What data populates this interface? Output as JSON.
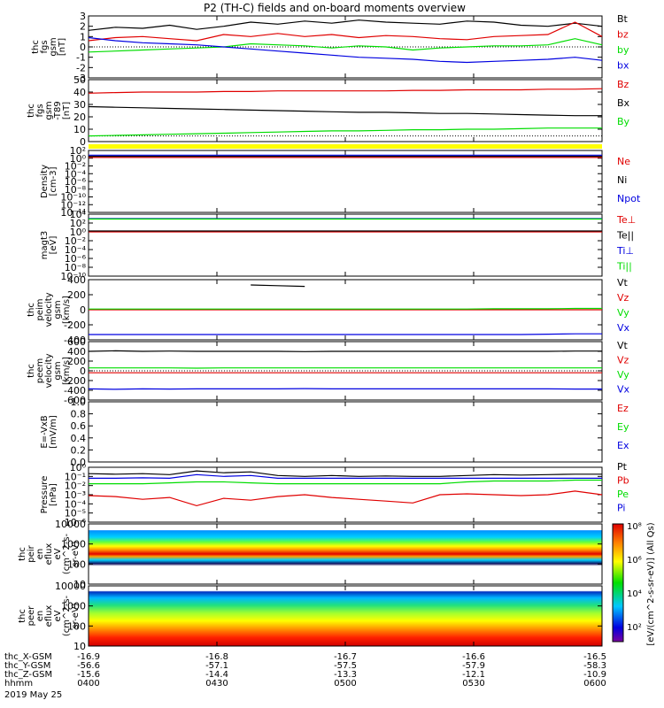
{
  "title": "P2 (TH-C) fields and on-board moments overview",
  "colors": {
    "black": "#000000",
    "red": "#e00000",
    "green": "#00dd00",
    "blue": "#0000e0",
    "yellow": "#ffff00",
    "axis": "#000000"
  },
  "chart_data": [
    {
      "type": "line",
      "ylabel": [
        "thc",
        "fgs",
        "gsm",
        "[nT]"
      ],
      "ylim": [
        -3,
        3
      ],
      "yticks": [
        "3",
        "2",
        "1",
        "0",
        "-1",
        "-2",
        "-3"
      ],
      "series": [
        {
          "name": "Bt",
          "color": "black",
          "values": [
            1.6,
            1.9,
            1.8,
            2.1,
            1.7,
            2.0,
            2.4,
            2.2,
            2.5,
            2.3,
            2.6,
            2.4,
            2.3,
            2.2,
            2.5,
            2.4,
            2.1,
            2.0,
            2.3,
            2.0
          ]
        },
        {
          "name": "bz",
          "color": "red",
          "values": [
            0.6,
            0.9,
            1.0,
            0.8,
            0.6,
            1.2,
            1.0,
            1.3,
            1.0,
            1.2,
            0.9,
            1.1,
            1.0,
            0.8,
            0.7,
            1.0,
            1.1,
            1.2,
            2.4,
            1.0
          ]
        },
        {
          "name": "by",
          "color": "green",
          "values": [
            -0.5,
            -0.4,
            -0.3,
            -0.2,
            -0.1,
            0.0,
            0.3,
            0.2,
            0.1,
            -0.1,
            0.1,
            0.0,
            -0.3,
            -0.1,
            0.0,
            0.1,
            0.1,
            0.2,
            0.8,
            0.2
          ]
        },
        {
          "name": "bx",
          "color": "blue",
          "values": [
            0.9,
            0.6,
            0.4,
            0.3,
            0.2,
            0.0,
            -0.2,
            -0.4,
            -0.6,
            -0.8,
            -1.0,
            -1.1,
            -1.2,
            -1.4,
            -1.5,
            -1.4,
            -1.3,
            -1.2,
            -1.0,
            -1.3
          ]
        }
      ]
    },
    {
      "type": "line",
      "ylabel": [
        "thc",
        "fgs",
        "gsm",
        "-T89",
        "[nT]"
      ],
      "ylim": [
        -5,
        50
      ],
      "yticks": [
        "50",
        "40",
        "30",
        "20",
        "10",
        "0"
      ],
      "series": [
        {
          "name": "Bz",
          "color": "red",
          "values": [
            38,
            38.5,
            39,
            39,
            39,
            39.5,
            39.5,
            40,
            40,
            40,
            40,
            40,
            40.5,
            40.5,
            41,
            41,
            41,
            41.5,
            41.5,
            42
          ]
        },
        {
          "name": "Bx",
          "color": "black",
          "values": [
            26,
            25.5,
            25,
            24.5,
            24,
            23.5,
            23,
            22.5,
            22,
            21.5,
            21,
            21,
            20.5,
            20,
            20,
            19.5,
            19,
            18.5,
            18,
            18
          ]
        },
        {
          "name": "By",
          "color": "green",
          "values": [
            0,
            0.5,
            1,
            1.5,
            2,
            2.5,
            3,
            3.5,
            4,
            4.5,
            4.5,
            5,
            5.5,
            5.5,
            6,
            6,
            6.5,
            7,
            7,
            7
          ]
        }
      ]
    },
    {
      "type": "line",
      "ylabel": [
        "Density",
        "[cm-3]"
      ],
      "ylim": [
        -14,
        2
      ],
      "log": true,
      "yticks": [
        "10²",
        "10⁰",
        "10⁻²",
        "10⁻⁴",
        "10⁻⁶",
        "10⁻⁸",
        "10⁻¹⁰",
        "10⁻¹²",
        "10⁻¹⁴"
      ],
      "series": [
        {
          "name": "Ne",
          "color": "red",
          "values": [
            0.2,
            0.2,
            0.2,
            0.2,
            0.2,
            0.2,
            0.2,
            0.2,
            0.2,
            0.2,
            0.2,
            0.2,
            0.2,
            0.2,
            0.2,
            0.2,
            0.2,
            0.2,
            0.2,
            0.2
          ]
        },
        {
          "name": "Ni",
          "color": "black",
          "values": [
            0.5,
            0.5,
            0.5,
            0.5,
            0.5,
            0.5,
            0.5,
            0.5,
            0.5,
            0.5,
            0.5,
            0.5,
            0.5,
            0.5,
            0.5,
            0.5,
            0.5,
            0.5,
            0.5,
            0.5
          ]
        },
        {
          "name": "Npot",
          "color": "blue",
          "values": [
            0.8,
            0.8,
            0.8,
            0.8,
            0.8,
            0.8,
            0.8,
            0.8,
            0.8,
            0.8,
            0.8,
            0.8,
            0.8,
            0.8,
            0.8,
            0.8,
            0.8,
            0.8,
            0.8,
            0.8
          ]
        }
      ]
    },
    {
      "type": "line",
      "ylabel": [
        "magt3",
        "[eV]"
      ],
      "ylim": [
        -10,
        4
      ],
      "log": true,
      "yticks": [
        "10⁴",
        "10²",
        "10⁰",
        "10⁻²",
        "10⁻⁴",
        "10⁻⁶",
        "10⁻⁸",
        "10⁻¹⁰"
      ],
      "series": [
        {
          "name": "Te⊥",
          "color": "red",
          "values": [
            0,
            0,
            0,
            0,
            0,
            0,
            0,
            0,
            0,
            0,
            0,
            0,
            0,
            0,
            0,
            0,
            0,
            0,
            0,
            0
          ]
        },
        {
          "name": "Te||",
          "color": "black",
          "values": [
            0.2,
            0.2,
            0.2,
            0.2,
            0.2,
            0.2,
            0.2,
            0.2,
            0.2,
            0.2,
            0.2,
            0.2,
            0.2,
            0.2,
            0.2,
            0.2,
            0.2,
            0.2,
            0.2,
            0.2
          ]
        },
        {
          "name": "Ti⊥",
          "color": "blue",
          "values": [
            3,
            3,
            3,
            3,
            3,
            3,
            3,
            3,
            3,
            3,
            3,
            3,
            3,
            3,
            3,
            3,
            3,
            3,
            3,
            3
          ]
        },
        {
          "name": "Ti||",
          "color": "green",
          "values": [
            2.9,
            2.9,
            2.9,
            2.9,
            2.9,
            2.9,
            2.9,
            2.9,
            2.9,
            2.9,
            2.9,
            2.9,
            2.9,
            2.9,
            2.9,
            2.9,
            2.9,
            2.9,
            2.9,
            2.9
          ]
        }
      ]
    },
    {
      "type": "line",
      "ylabel": [
        "thc",
        "peim",
        "velocity",
        "gsm",
        "[km/s]"
      ],
      "ylim": [
        -450,
        450
      ],
      "yticks": [
        "400",
        "200",
        "0",
        "-200",
        "-400"
      ],
      "series": [
        {
          "name": "Vt",
          "color": "black",
          "values": [
            null,
            null,
            null,
            null,
            null,
            null,
            370,
            360,
            350,
            null,
            null,
            null,
            null,
            null,
            null,
            null,
            null,
            null,
            null,
            null
          ]
        },
        {
          "name": "Vz",
          "color": "red",
          "values": [
            0,
            0,
            0,
            0,
            0,
            0,
            0,
            0,
            0,
            0,
            0,
            0,
            0,
            0,
            0,
            0,
            0,
            0,
            0,
            0
          ]
        },
        {
          "name": "Vy",
          "color": "green",
          "values": [
            10,
            10,
            10,
            10,
            10,
            10,
            10,
            10,
            10,
            10,
            10,
            10,
            10,
            10,
            10,
            15,
            15,
            15,
            20,
            20
          ]
        },
        {
          "name": "Vx",
          "color": "blue",
          "values": [
            -370,
            -370,
            -370,
            -370,
            -370,
            -370,
            -370,
            -370,
            -370,
            -370,
            -370,
            -370,
            -370,
            -370,
            -370,
            -370,
            -370,
            -365,
            -360,
            -360
          ]
        }
      ]
    },
    {
      "type": "line",
      "ylabel": [
        "thc",
        "peem",
        "velocity",
        "gsm",
        "[km/s]"
      ],
      "ylim": [
        -600,
        600
      ],
      "yticks": [
        "600",
        "400",
        "200",
        "0",
        "-200",
        "-400",
        "-600"
      ],
      "series": [
        {
          "name": "Vt",
          "color": "black",
          "values": [
            400,
            410,
            400,
            405,
            400,
            400,
            400,
            400,
            395,
            400,
            400,
            400,
            400,
            400,
            400,
            400,
            400,
            400,
            405,
            405
          ]
        },
        {
          "name": "Vz",
          "color": "red",
          "values": [
            -40,
            -40,
            -40,
            -40,
            -40,
            -40,
            -40,
            -40,
            -40,
            -40,
            -40,
            -40,
            -40,
            -40,
            -40,
            -40,
            -40,
            -40,
            -40,
            -40
          ]
        },
        {
          "name": "Vy",
          "color": "green",
          "values": [
            60,
            60,
            60,
            60,
            55,
            60,
            60,
            60,
            60,
            60,
            60,
            60,
            60,
            60,
            60,
            60,
            60,
            60,
            60,
            60
          ]
        },
        {
          "name": "Vx",
          "color": "blue",
          "values": [
            -370,
            -380,
            -370,
            -375,
            -370,
            -370,
            -370,
            -370,
            -365,
            -370,
            -370,
            -370,
            -370,
            -370,
            -370,
            -370,
            -370,
            -370,
            -375,
            -375
          ]
        }
      ]
    },
    {
      "type": "line",
      "ylabel": [
        "E=-VxB",
        "[mV/m]"
      ],
      "ylim": [
        0,
        1
      ],
      "yticks": [
        "1.0",
        "0.8",
        "0.6",
        "0.4",
        "0.2",
        "0.0"
      ],
      "series": [
        {
          "name": "Ez",
          "color": "red",
          "values": []
        },
        {
          "name": "Ey",
          "color": "green",
          "values": []
        },
        {
          "name": "Ex",
          "color": "blue",
          "values": []
        }
      ]
    },
    {
      "type": "line",
      "ylabel": [
        "Pressure",
        "[nPa]"
      ],
      "ylim": [
        -6,
        0
      ],
      "log": true,
      "yticks": [
        "10⁰",
        "10⁻¹",
        "10⁻²",
        "10⁻³",
        "10⁻⁴",
        "10⁻⁵",
        "10⁻⁶"
      ],
      "series": [
        {
          "name": "Pt",
          "color": "black",
          "values": [
            -0.7,
            -0.75,
            -0.7,
            -0.8,
            -0.4,
            -0.6,
            -0.5,
            -0.9,
            -1.0,
            -0.9,
            -1.0,
            -0.95,
            -1.0,
            -1.0,
            -0.9,
            -0.8,
            -0.85,
            -0.8,
            -0.75,
            -0.75
          ]
        },
        {
          "name": "Pb",
          "color": "red",
          "values": [
            -3.1,
            -3.2,
            -3.5,
            -3.3,
            -4.2,
            -3.4,
            -3.6,
            -3.2,
            -3.0,
            -3.3,
            -3.5,
            -3.7,
            -3.9,
            -3.0,
            -2.9,
            -3.0,
            -3.1,
            -3.0,
            -2.6,
            -3.0
          ]
        },
        {
          "name": "Pe",
          "color": "green",
          "values": [
            -1.8,
            -1.8,
            -1.8,
            -1.7,
            -1.6,
            -1.6,
            -1.7,
            -1.8,
            -1.8,
            -1.8,
            -1.8,
            -1.8,
            -1.8,
            -1.8,
            -1.6,
            -1.5,
            -1.5,
            -1.5,
            -1.4,
            -1.4
          ]
        },
        {
          "name": "Pi",
          "color": "blue",
          "values": [
            -1.2,
            -1.2,
            -1.15,
            -1.2,
            -0.8,
            -1.0,
            -0.9,
            -1.2,
            -1.2,
            -1.2,
            -1.2,
            -1.2,
            -1.2,
            -1.2,
            -1.2,
            -1.2,
            -1.2,
            -1.2,
            -1.2,
            -1.2
          ]
        }
      ]
    },
    {
      "type": "heatmap",
      "ylabel": [
        "thc",
        "peir",
        "en",
        "eflux",
        "eV",
        "(cm^2-s-",
        "sr-eV)"
      ],
      "ylim": [
        5,
        10000
      ],
      "log": true,
      "yticks": [
        "10000",
        "1000",
        "100",
        "10"
      ]
    },
    {
      "type": "heatmap",
      "ylabel": [
        "thc",
        "peer",
        "en",
        "eflux",
        "eV",
        "(cm^2-s-",
        "sr-eV)"
      ],
      "ylim": [
        5,
        10000
      ],
      "log": true,
      "yticks": [
        "10000",
        "1000",
        "100",
        "10"
      ]
    }
  ],
  "colorbar": {
    "label": "[eV/(cm^2-s-sr-eV)] (All Qs)",
    "ticks": [
      "10⁸",
      "10⁶",
      "10⁴",
      "10²"
    ]
  },
  "xaxis": {
    "rows": [
      {
        "label": "thc_X-GSM",
        "values": [
          "-16.9",
          "-16.8",
          "-16.7",
          "-16.6",
          "-16.5"
        ]
      },
      {
        "label": "thc_Y-GSM",
        "values": [
          "-56.6",
          "-57.1",
          "-57.5",
          "-57.9",
          "-58.3"
        ]
      },
      {
        "label": "thc_Z-GSM",
        "values": [
          "-15.6",
          "-14.4",
          "-13.3",
          "-12.1",
          "-10.9"
        ]
      },
      {
        "label": "hhmm",
        "values": [
          "0400",
          "0430",
          "0500",
          "0530",
          "0600"
        ]
      }
    ],
    "date": "2019 May 25"
  }
}
